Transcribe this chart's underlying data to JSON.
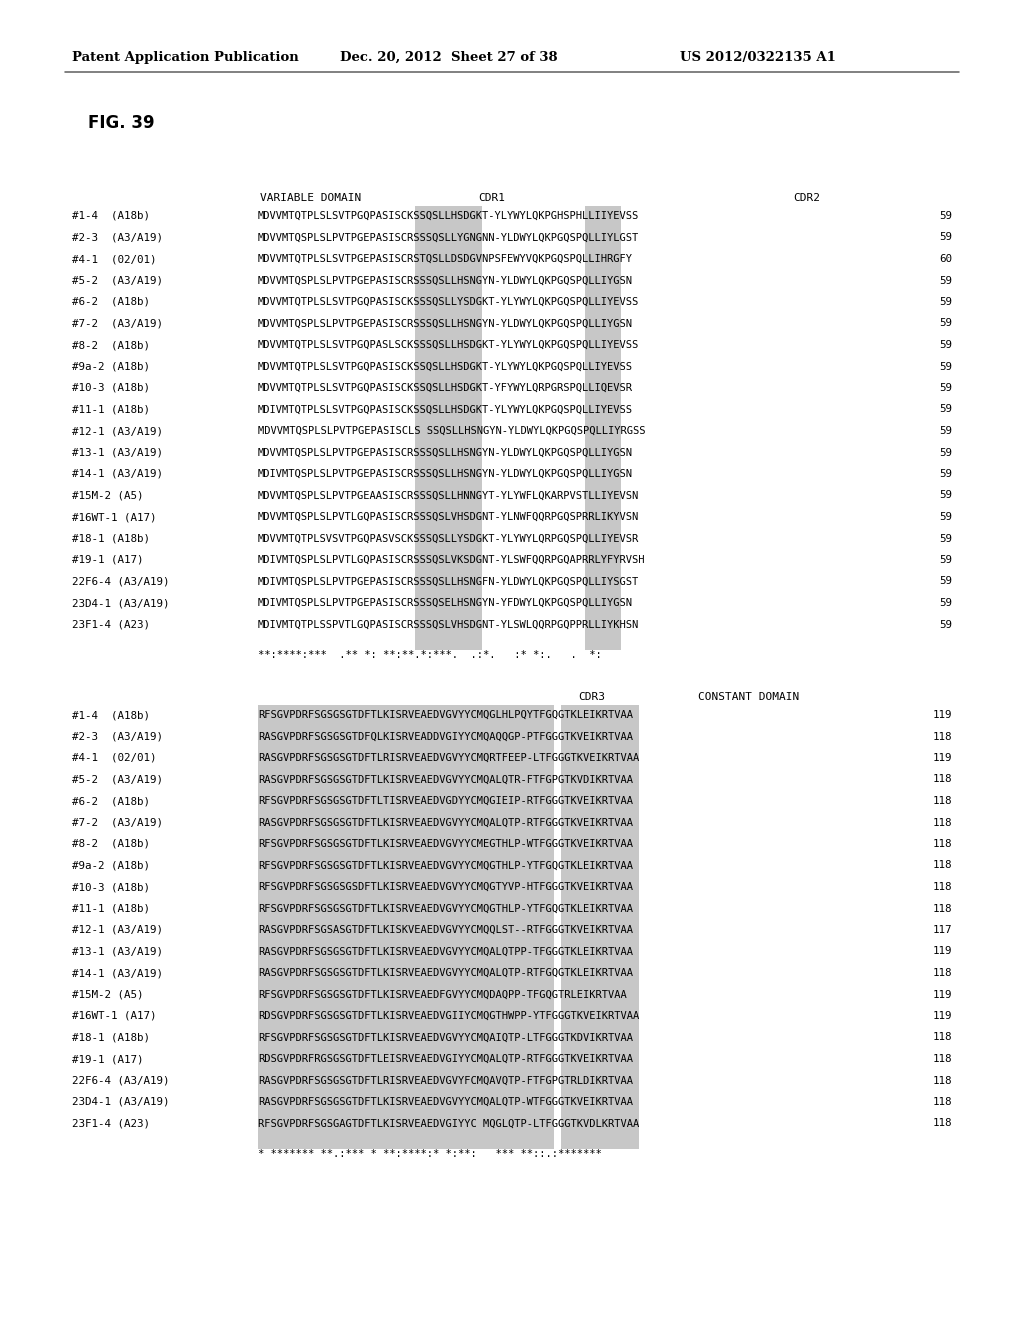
{
  "header_left": "Patent Application Publication",
  "header_middle": "Dec. 20, 2012  Sheet 27 of 38",
  "header_right": "US 2012/0322135 A1",
  "fig_label": "FIG. 39",
  "section1_rows": [
    {
      "label": "#1-4  (A18b)",
      "seq": "MDVVMTQTPLSLSVTPGQPASISCKSSQSLLHSDGKT-YLYWYLQKPGHSPHLLIIYEVSS",
      "num": "59"
    },
    {
      "label": "#2-3  (A3/A19)",
      "seq": "MDVVMTQSPLSLPVTPGEPASISCRSSSQSLLYGNGNN-YLDWYLQKPGQSPQLLIYLGST",
      "num": "59"
    },
    {
      "label": "#4-1  (02/01)",
      "seq": "MDVVMTQTPLSLSVTPGEPASISCRSTQSLLDSDGVNPSFEWYVQKPGQSPQLLIHRGFY",
      "num": "60"
    },
    {
      "label": "#5-2  (A3/A19)",
      "seq": "MDVVMTQSPLSLPVTPGEPASISCRSSSQSLLHSNGYN-YLDWYLQKPGQSPQLLIYGSN",
      "num": "59"
    },
    {
      "label": "#6-2  (A18b)",
      "seq": "MDVVMTQTPLSLSVTPGQPASISCKSSSQSLLYSDGKT-YLYWYLQKPGQSPQLLIYEVSS",
      "num": "59"
    },
    {
      "label": "#7-2  (A3/A19)",
      "seq": "MDVVMTQSPLSLPVTPGEPASISCRSSSQSLLHSNGYN-YLDWYLQKPGQSPQLLIYGSN",
      "num": "59"
    },
    {
      "label": "#8-2  (A18b)",
      "seq": "MDVVMTQTPLSLSVTPGQPASLSCKSSSQSLLHSDGKT-YLYWYLQKPGQSPQLLIYEVSS",
      "num": "59"
    },
    {
      "label": "#9a-2 (A18b)",
      "seq": "MDVVMTQTPLSLSVTPGQPASISCKSSQSLLHSDGKT-YLYWYLQKPGQSPQLLIYEVSS",
      "num": "59"
    },
    {
      "label": "#10-3 (A18b)",
      "seq": "MDVVMTQTPLSLSVTPGQPASISCKSSQSLLHSDGKT-YFYWYLQRPGRSPQLLIQEVSR",
      "num": "59"
    },
    {
      "label": "#11-1 (A18b)",
      "seq": "MDIVMTQTPLSLSVTPGQPASISCKSSQSLLHSDGKT-YLYWYLQKPGQSPQLLIYEVSS",
      "num": "59"
    },
    {
      "label": "#12-1 (A3/A19)",
      "seq": "MDVVMTQSPLSLPVTPGEPASISCLS SSQSLLHSNGYN-YLDWYLQKPGQSPQLLIYRGSS",
      "num": "59"
    },
    {
      "label": "#13-1 (A3/A19)",
      "seq": "MDVVMTQSPLSLPVTPGEPASISCRSSSQSLLHSNGYN-YLDWYLQKPGQSPQLLIYGSN",
      "num": "59"
    },
    {
      "label": "#14-1 (A3/A19)",
      "seq": "MDIVMTQSPLSLPVTPGEPASISCRSSSQSLLHSNGYN-YLDWYLQKPGQSPQLLIYGSN",
      "num": "59"
    },
    {
      "label": "#15M-2 (A5)",
      "seq": "MDVVMTQSPLSLPVTPGEAASISCRSSSQSLLHNNGYT-YLYWFLQKARPVSTLLIYEVSN",
      "num": "59"
    },
    {
      "label": "#16WT-1 (A17)",
      "seq": "MDVVMTQSPLSLPVTLGQPASISCRSSSQSLVHSDGNT-YLNWFQQRPGQSPRRLIKYVSN",
      "num": "59"
    },
    {
      "label": "#18-1 (A18b)",
      "seq": "MDVVMTQTPLSVSVTPGQPASVSCKSSSQSLLYSDGKT-YLYWYLQRPGQSPQLLIYEVSR",
      "num": "59"
    },
    {
      "label": "#19-1 (A17)",
      "seq": "MDIVMTQSPLSLPVTLGQPASISCRSSSQSLVKSDGNT-YLSWFQQRPGQAPRRLYFYRVSH",
      "num": "59"
    },
    {
      "label": "22F6-4 (A3/A19)",
      "seq": "MDIVMTQSPLSLPVTPGEPASISCRSSSQSLLHSNGFN-YLDWYLQKPGQSPQLLIYSGST",
      "num": "59"
    },
    {
      "label": "23D4-1 (A3/A19)",
      "seq": "MDIVMTQSPLSLPVTPGEPASISCRSSSQSELHSNGYN-YFDWYLQKPGQSPQLLIYGSN",
      "num": "59"
    },
    {
      "label": "23F1-4 (A23)",
      "seq": "MDIVMTQTPLSSPVTLGQPASISCRSSSQSLVHSDGNT-YLSWLQQRPGQPPRLLIYKHSN",
      "num": "59"
    }
  ],
  "section1_conservation": "**:****:***  .** *: **:**.*:***.  .:*.   :* *:.   .  *:",
  "section2_rows": [
    {
      "label": "#1-4  (A18b)",
      "seq": "RFSGVPDRFSGSGSGTDFTLKISRVEAEDVGVYYCMQGLHLPQYTFGQGTKLEIKRTVAA",
      "num": "119"
    },
    {
      "label": "#2-3  (A3/A19)",
      "seq": "RASGVPDRFSGSGSGTDFQLKISRVEADDVGIYYCMQAQQGP-PTFGGGTKVEIKRTVAA",
      "num": "118"
    },
    {
      "label": "#4-1  (02/01)",
      "seq": "RASGVPDRFSGSGSGTDFTLRISRVEAEDVGVYYCMQRTFEEP-LTFGGGTKVEIKRTVAA",
      "num": "119"
    },
    {
      "label": "#5-2  (A3/A19)",
      "seq": "RASGVPDRFSGSGSGTDFTLKISRVEAEDVGVYYCMQALQTR-FTFGPGTKVDIKRTVAA",
      "num": "118"
    },
    {
      "label": "#6-2  (A18b)",
      "seq": "RFSGVPDRFSGSGSGTDFTLTISRVEAEDVGDYYCMQGIEIP-RTFGGGTKVEIKRTVAA",
      "num": "118"
    },
    {
      "label": "#7-2  (A3/A19)",
      "seq": "RASGVPDRFSGSGSGTDFTLKISRVEAEDVGVYYCMQALQTP-RTFGGGTKVEIKRTVAA",
      "num": "118"
    },
    {
      "label": "#8-2  (A18b)",
      "seq": "RFSGVPDRFSGSGSGTDFTLKISRVEAEDVGVYYCMEGTHLP-WTFGGGTKVEIKRTVAA",
      "num": "118"
    },
    {
      "label": "#9a-2 (A18b)",
      "seq": "RFSGVPDRFSGSGSGTDFTLKISRVEAEDVGVYYCMQGTHLP-YTFGQGTKLEIKRTVAA",
      "num": "118"
    },
    {
      "label": "#10-3 (A18b)",
      "seq": "RFSGVPDRFSGSGSGSDFTLKISRVEAEDVGVYYCMQGTYVP-HTFGGGTKVEIKRTVAA",
      "num": "118"
    },
    {
      "label": "#11-1 (A18b)",
      "seq": "RFSGVPDRFSGSGSGTDFTLKISRVEAEDVGVYYCMQGTHLP-YTFGQGTKLEIKRTVAA",
      "num": "118"
    },
    {
      "label": "#12-1 (A3/A19)",
      "seq": "RASGVPDRFSGSASGTDFTLKISKVEAEDVGVYYCMQQLST--RTFGGGTKVEIKRTVAA",
      "num": "117"
    },
    {
      "label": "#13-1 (A3/A19)",
      "seq": "RASGVPDRFSGSGSGTDFTLKISRVEAEDVGVYYCMQALQTPP-TFGGGTKLEIKRTVAA",
      "num": "119"
    },
    {
      "label": "#14-1 (A3/A19)",
      "seq": "RASGVPDRFSGSGSGTDFTLKISRVEAEDVGVYYCMQALQTP-RTFGQGTKLEIKRTVAA",
      "num": "118"
    },
    {
      "label": "#15M-2 (A5)",
      "seq": "RFSGVPDRFSGSGSGTDFTLKISRVEAEDFGVYYCMQDAQPP-TFGQGTRLEIKRTVAA",
      "num": "119"
    },
    {
      "label": "#16WT-1 (A17)",
      "seq": "RDSGVPDRFSGSGSGTDFTLKISRVEAEDVGIIYCMQGTHWPP-YTFGGGTKVEIKRTVAA",
      "num": "119"
    },
    {
      "label": "#18-1 (A18b)",
      "seq": "RFSGVPDRFSGSGSGTDFTLKISRVEAEDVGVYYCMQAIQTP-LTFGGGTKDVIKRTVAA",
      "num": "118"
    },
    {
      "label": "#19-1 (A17)",
      "seq": "RDSGVPDRFRGSGSGTDFTLEISRVEAEDVGIYYCMQALQTP-RTFGGGTKVEIKRTVAA",
      "num": "118"
    },
    {
      "label": "22F6-4 (A3/A19)",
      "seq": "RASGVPDRFSGSGSGTDFTLRISRVEAEDVGVYFCMQAVQTP-FTFGPGTRLDIKRTVAA",
      "num": "118"
    },
    {
      "label": "23D4-1 (A3/A19)",
      "seq": "RASGVPDRFSGSGSGTDFTLKISRVEAEDVGVYYCMQALQTP-WTFGGGTKVEIKRTVAA",
      "num": "118"
    },
    {
      "label": "23F1-4 (A23)",
      "seq": "RFSGVPDRFSGSGAGTDFTLKISRVEAEDVGIYYC MQGLQTP-LTFGGGTKVDLKRTVAA",
      "num": "118"
    }
  ],
  "section2_conservation": "* ******* **.:*** * **:****:* *:**:   *** **::.:*******",
  "bg_color": "#ffffff"
}
